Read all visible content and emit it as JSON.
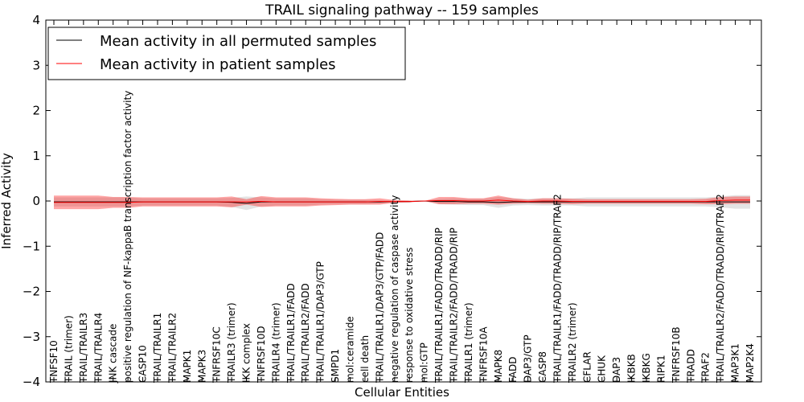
{
  "chart_data": {
    "type": "line",
    "title": "TRAIL signaling pathway -- 159 samples",
    "xlabel": "Cellular Entities",
    "ylabel": "Inferred Activity",
    "ylim": [
      -4,
      4
    ],
    "yticks": [
      -4,
      -3,
      -2,
      -1,
      0,
      1,
      2,
      3,
      4
    ],
    "ytick_labels": [
      "−4",
      "−3",
      "−2",
      "−1",
      "0",
      "1",
      "2",
      "3",
      "4"
    ],
    "legend_position": "top-left",
    "categories": [
      "TNFSF10",
      "TRAIL (trimer)",
      "TRAIL/TRAILR3",
      "TRAIL/TRAILR4",
      "JNK cascade",
      "positive regulation of NF-kappaB transcription factor activity",
      "CASP10",
      "TRAIL/TRAILR1",
      "TRAIL/TRAILR2",
      "MAPK1",
      "MAPK3",
      "TNFRSF10C",
      "TRAILR3 (trimer)",
      "IKK complex",
      "TNFRSF10D",
      "TRAILR4 (trimer)",
      "TRAIL/TRAILR1/FADD",
      "TRAIL/TRAILR2/FADD",
      "TRAIL/TRAILR1/DAP3/GTP",
      "SMPD1",
      "mol:ceramide",
      "cell death",
      "TRAIL/TRAILR1/DAP3/GTP/FADD",
      "negative regulation of caspase activity",
      "response to oxidative stress",
      "mol:GTP",
      "TRAIL/TRAILR1/FADD/TRADD/RIP",
      "TRAIL/TRAILR2/FADD/TRADD/RIP",
      "TRAILR1 (trimer)",
      "TNFRSF10A",
      "MAPK8",
      "FADD",
      "DAP3/GTP",
      "CASP8",
      "TRAIL/TRAILR1/FADD/TRADD/RIP/TRAF2",
      "TRAILR2 (trimer)",
      "CFLAR",
      "CHUK",
      "DAP3",
      "IKBKB",
      "IKBKG",
      "RIPK1",
      "TNFRSF10B",
      "TRADD",
      "TRAF2",
      "TRAIL/TRAILR2/FADD/TRADD/RIP/TRAF2",
      "MAP3K1",
      "MAP2K4"
    ],
    "series": [
      {
        "name": "Mean activity in all permuted samples",
        "color": "#000000",
        "values": [
          -0.02,
          -0.02,
          -0.02,
          -0.02,
          -0.02,
          -0.02,
          -0.02,
          -0.02,
          -0.02,
          -0.02,
          -0.02,
          -0.02,
          -0.03,
          -0.05,
          -0.02,
          -0.02,
          -0.02,
          -0.02,
          -0.02,
          -0.02,
          -0.02,
          -0.02,
          -0.02,
          -0.01,
          -0.01,
          0.0,
          -0.01,
          -0.01,
          -0.02,
          -0.02,
          -0.03,
          -0.02,
          -0.02,
          -0.02,
          -0.02,
          -0.02,
          -0.02,
          -0.02,
          -0.02,
          -0.02,
          -0.02,
          -0.02,
          -0.02,
          -0.02,
          -0.02,
          -0.02,
          -0.02,
          -0.02
        ],
        "band_half_width": [
          0.1,
          0.1,
          0.1,
          0.1,
          0.1,
          0.1,
          0.08,
          0.08,
          0.08,
          0.08,
          0.08,
          0.08,
          0.1,
          0.15,
          0.1,
          0.08,
          0.08,
          0.08,
          0.06,
          0.05,
          0.05,
          0.05,
          0.04,
          0.02,
          0.02,
          0.0,
          0.06,
          0.07,
          0.07,
          0.07,
          0.12,
          0.08,
          0.07,
          0.08,
          0.08,
          0.08,
          0.1,
          0.1,
          0.1,
          0.1,
          0.1,
          0.1,
          0.1,
          0.1,
          0.1,
          0.12,
          0.15,
          0.15
        ]
      },
      {
        "name": "Mean activity in patient samples",
        "color": "#ff0000",
        "values": [
          -0.03,
          -0.03,
          -0.03,
          -0.03,
          -0.03,
          -0.03,
          -0.02,
          -0.02,
          -0.02,
          -0.02,
          -0.02,
          -0.02,
          -0.02,
          -0.02,
          -0.01,
          -0.02,
          -0.02,
          -0.02,
          -0.02,
          -0.02,
          -0.02,
          -0.02,
          -0.01,
          -0.01,
          -0.01,
          0.0,
          0.01,
          0.01,
          0.0,
          0.0,
          0.02,
          0.0,
          -0.01,
          0.0,
          0.0,
          -0.01,
          -0.01,
          -0.01,
          -0.01,
          -0.01,
          -0.01,
          -0.01,
          -0.01,
          -0.01,
          -0.01,
          0.01,
          0.02,
          0.02
        ],
        "band_half_width": [
          0.15,
          0.15,
          0.15,
          0.15,
          0.12,
          0.12,
          0.1,
          0.1,
          0.1,
          0.1,
          0.1,
          0.1,
          0.12,
          0.06,
          0.12,
          0.1,
          0.1,
          0.1,
          0.08,
          0.07,
          0.06,
          0.06,
          0.07,
          0.03,
          0.02,
          0.0,
          0.08,
          0.08,
          0.06,
          0.06,
          0.1,
          0.06,
          0.04,
          0.06,
          0.06,
          0.06,
          0.05,
          0.05,
          0.05,
          0.05,
          0.05,
          0.05,
          0.05,
          0.05,
          0.06,
          0.08,
          0.08,
          0.08
        ]
      }
    ]
  }
}
